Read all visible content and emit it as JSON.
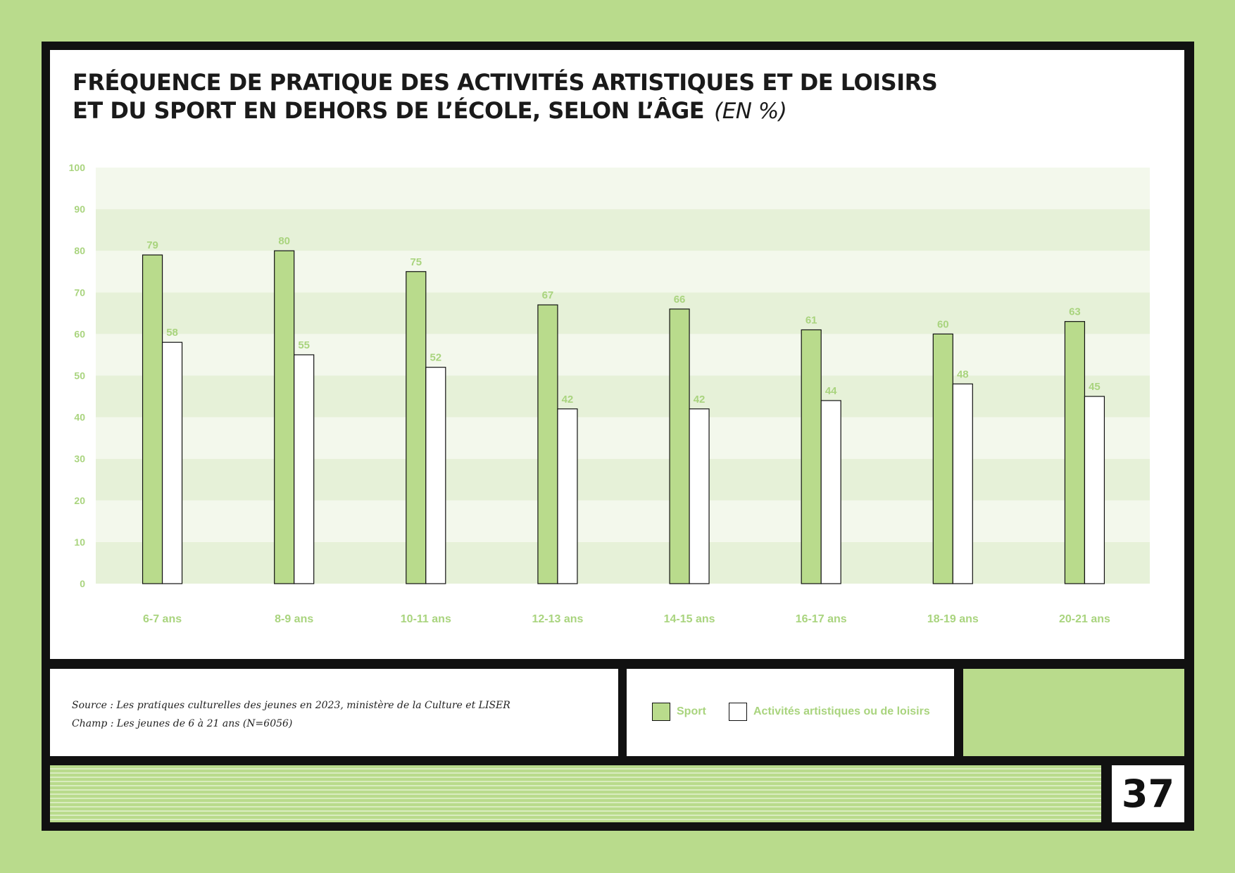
{
  "title": {
    "line1": "FRÉQUENCE DE PRATIQUE DES ACTIVITÉS ARTISTIQUES ET DE LOISIRS",
    "line2": "ET DU SPORT EN DEHORS DE L’ÉCOLE, SELON L’ÂGE",
    "unit": "(EN %)"
  },
  "source": {
    "line1": "Source : Les pratiques culturelles des jeunes en 2023, ministère de la Culture et LISER",
    "line2": "Champ : Les jeunes de 6 à 21 ans (N=6056)"
  },
  "legend": {
    "sport": "Sport",
    "arts": "Activités artistiques ou de loisirs"
  },
  "page_number": "37",
  "colors": {
    "background": "#b9db8c",
    "sport": "#b9db8c",
    "arts": "#ffffff",
    "label": "#a9d47e",
    "band_light": "#f3f8ec",
    "band_dark": "#e6f1d8"
  },
  "chart_data": {
    "type": "bar",
    "categories": [
      "6-7 ans",
      "8-9 ans",
      "10-11 ans",
      "12-13 ans",
      "14-15 ans",
      "16-17 ans",
      "18-19 ans",
      "20-21 ans"
    ],
    "series": [
      {
        "name": "Sport",
        "values": [
          79,
          80,
          75,
          67,
          66,
          61,
          60,
          63
        ]
      },
      {
        "name": "Activités artistiques ou de loisirs",
        "values": [
          58,
          55,
          52,
          42,
          42,
          44,
          48,
          45
        ]
      }
    ],
    "ylim": [
      0,
      100
    ],
    "yticks": [
      0,
      10,
      20,
      30,
      40,
      50,
      60,
      70,
      80,
      90,
      100
    ],
    "grid": "alternating bands",
    "legend": "bottom"
  }
}
